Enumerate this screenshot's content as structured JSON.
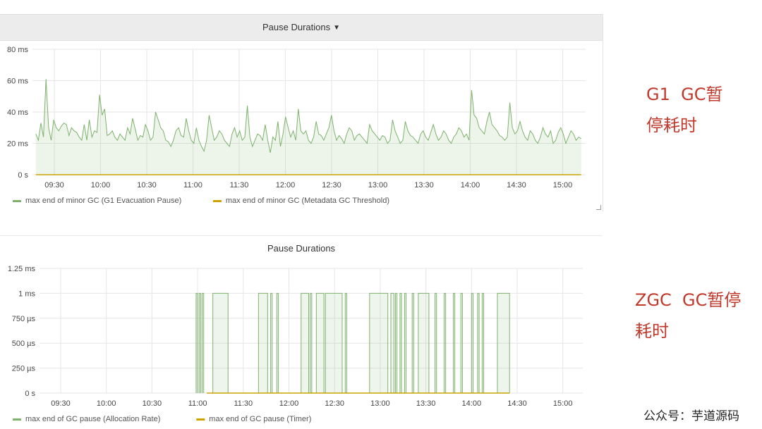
{
  "panels": [
    {
      "title": "Pause Durations",
      "has_dropdown": true,
      "y_ticks": [
        "80 ms",
        "60 ms",
        "40 ms",
        "20 ms",
        "0 s"
      ],
      "x_ticks": [
        "09:30",
        "10:00",
        "10:30",
        "11:00",
        "11:30",
        "12:00",
        "12:30",
        "13:00",
        "13:30",
        "14:00",
        "14:30",
        "15:00"
      ],
      "legend": [
        {
          "label": "max end of minor GC (G1 Evacuation Pause)",
          "color": "#7eb26d"
        },
        {
          "label": "max end of minor GC (Metadata GC Threshold)",
          "color": "#cca300"
        }
      ]
    },
    {
      "title": "Pause Durations",
      "has_dropdown": false,
      "y_ticks": [
        "1.25 ms",
        "1 ms",
        "750 µs",
        "500 µs",
        "250 µs",
        "0 s"
      ],
      "x_ticks": [
        "09:30",
        "10:00",
        "10:30",
        "11:00",
        "11:30",
        "12:00",
        "12:30",
        "13:00",
        "13:30",
        "14:00",
        "14:30",
        "15:00"
      ],
      "legend": [
        {
          "label": "max end of GC pause (Allocation Rate)",
          "color": "#7eb26d"
        },
        {
          "label": "max end of GC pause (Timer)",
          "color": "#cca300"
        }
      ]
    }
  ],
  "annotations": {
    "g1": "G1  GC暂\n停耗时",
    "zgc": "ZGC  GC暂停\n耗时"
  },
  "watermark": "公众号：芋道源码",
  "chart_data": [
    {
      "type": "line",
      "title": "Pause Durations",
      "xlabel": "",
      "ylabel": "",
      "x_range": [
        "09:18",
        "15:12"
      ],
      "ylim_ms": [
        0,
        80
      ],
      "grid": true,
      "legend_position": "bottom-left",
      "series": [
        {
          "name": "max end of minor GC (G1 Evacuation Pause)",
          "color": "#7eb26d",
          "fill": true,
          "values_ms": [
            26,
            22,
            33,
            24,
            61,
            30,
            22,
            35,
            30,
            28,
            31,
            33,
            32,
            25,
            30,
            28,
            27,
            24,
            22,
            32,
            22,
            35,
            24,
            28,
            27,
            51,
            38,
            42,
            25,
            26,
            28,
            24,
            22,
            26,
            24,
            22,
            30,
            26,
            36,
            29,
            22,
            25,
            24,
            32,
            28,
            22,
            24,
            40,
            35,
            30,
            28,
            22,
            21,
            18,
            22,
            28,
            30,
            25,
            24,
            36,
            28,
            22,
            20,
            30,
            22,
            18,
            15,
            22,
            38,
            30,
            22,
            24,
            28,
            26,
            22,
            20,
            18,
            26,
            30,
            24,
            28,
            22,
            24,
            44,
            24,
            18,
            22,
            26,
            25,
            22,
            32,
            22,
            14,
            24,
            22,
            34,
            18,
            26,
            37,
            30,
            24,
            28,
            22,
            42,
            28,
            26,
            28,
            22,
            20,
            24,
            34,
            26,
            25,
            22,
            26,
            30,
            38,
            28,
            22,
            25,
            23,
            20,
            26,
            30,
            28,
            22,
            25,
            26,
            24,
            22,
            20,
            32,
            28,
            26,
            24,
            22,
            25,
            24,
            20,
            22,
            35,
            28,
            24,
            20,
            22,
            34,
            28,
            25,
            24,
            22,
            20,
            26,
            28,
            24,
            22,
            27,
            32,
            26,
            22,
            24,
            28,
            26,
            22,
            20,
            24,
            26,
            30,
            28,
            24,
            26,
            22,
            54,
            38,
            36,
            30,
            28,
            26,
            34,
            40,
            32,
            30,
            28,
            25,
            24,
            22,
            24,
            46,
            30,
            26,
            28,
            34,
            28,
            24,
            22,
            28,
            26,
            22,
            20,
            24,
            30,
            26,
            24,
            28,
            20,
            22,
            27,
            30,
            26,
            20,
            24,
            28,
            26,
            22,
            24,
            23
          ]
        },
        {
          "name": "max end of minor GC (Metadata GC Threshold)",
          "color": "#cca300",
          "fill": false,
          "values_ms": [
            0
          ]
        }
      ]
    },
    {
      "type": "line",
      "title": "Pause Durations",
      "xlabel": "",
      "ylabel": "",
      "x_range": [
        "09:18",
        "15:12"
      ],
      "ylim_us": [
        0,
        1250
      ],
      "grid": true,
      "legend_position": "bottom-left",
      "series": [
        {
          "name": "max end of GC pause (Allocation Rate)",
          "color": "#7eb26d",
          "fill": true,
          "note_domain": "time-of-day",
          "pulses": [
            [
              "10:59",
              "11:00"
            ],
            [
              "11:01",
              "11:02"
            ],
            [
              "11:03",
              "11:04"
            ],
            [
              "11:10",
              "11:20"
            ],
            [
              "11:40",
              "11:46"
            ],
            [
              "11:48",
              "11:49"
            ],
            [
              "11:52",
              "11:53"
            ],
            [
              "12:08",
              "12:13"
            ],
            [
              "12:14",
              "12:15"
            ],
            [
              "12:18",
              "12:23"
            ],
            [
              "12:24",
              "12:35"
            ],
            [
              "12:37",
              "12:38"
            ],
            [
              "12:53",
              "13:05"
            ],
            [
              "13:07",
              "13:09"
            ],
            [
              "13:10",
              "13:11"
            ],
            [
              "13:13",
              "13:14"
            ],
            [
              "13:16",
              "13:17"
            ],
            [
              "13:21",
              "13:22"
            ],
            [
              "13:25",
              "13:32"
            ],
            [
              "13:36",
              "13:37"
            ],
            [
              "13:42",
              "13:43"
            ],
            [
              "13:48",
              "13:49"
            ],
            [
              "13:53",
              "13:54"
            ],
            [
              "14:00",
              "14:01"
            ],
            [
              "14:04",
              "14:05"
            ],
            [
              "14:07",
              "14:08"
            ],
            [
              "14:17",
              "14:25"
            ]
          ],
          "pulse_value_us": 1000
        },
        {
          "name": "max end of GC pause (Timer)",
          "color": "#cca300",
          "fill": false,
          "range": [
            "11:06",
            "14:25"
          ],
          "value_us": 0
        }
      ]
    }
  ]
}
